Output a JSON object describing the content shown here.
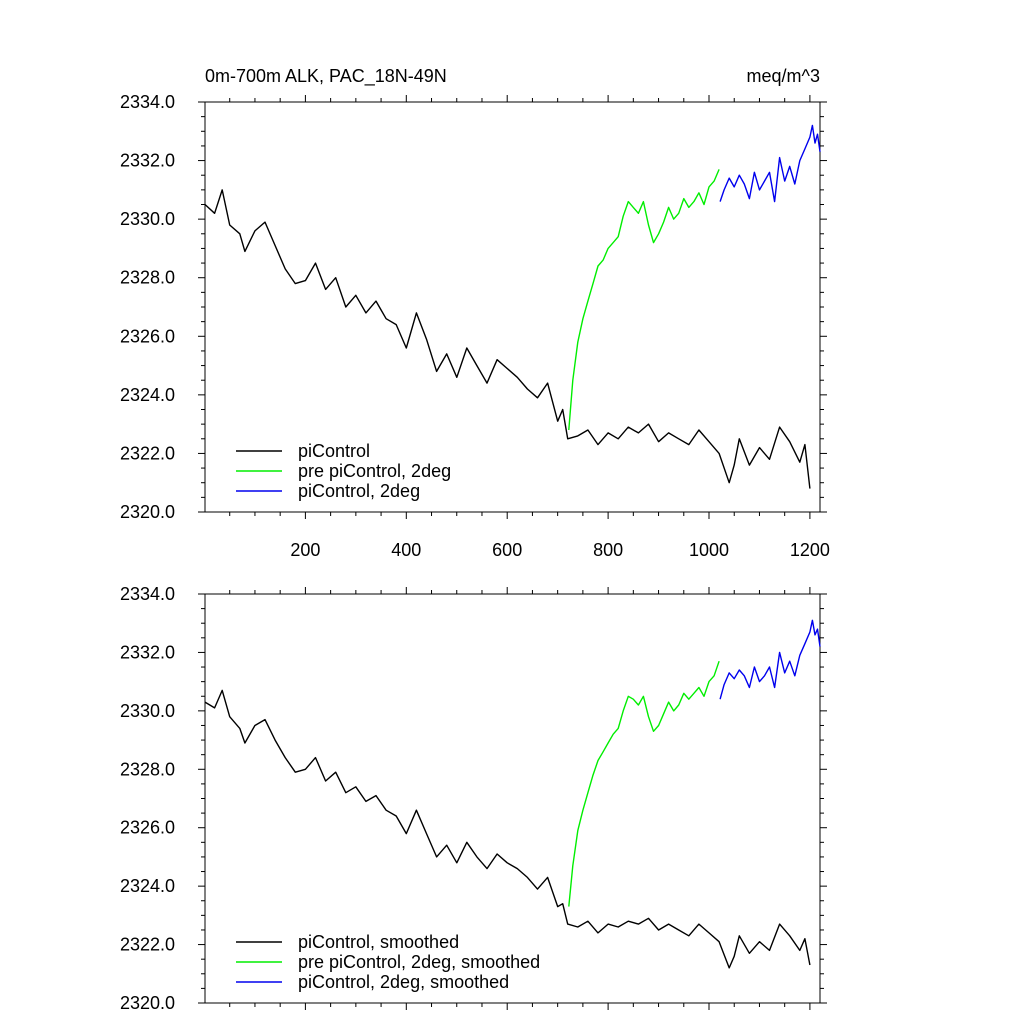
{
  "figure": {
    "title_left": "0m-700m ALK, PAC_18N-49N",
    "title_right": "meq/m^3"
  },
  "chart_data": [
    {
      "type": "line",
      "title": "0m-700m ALK, PAC_18N-49N",
      "units": "meq/m^3",
      "xlim": [
        1,
        1220
      ],
      "ylim": [
        2320.0,
        2334.0
      ],
      "x_ticks": [
        200,
        400,
        600,
        800,
        1000,
        1200
      ],
      "x_tick_labels": [
        "200",
        "400",
        "600",
        "800",
        "1000",
        "1200"
      ],
      "y_ticks": [
        2320.0,
        2322.0,
        2324.0,
        2326.0,
        2328.0,
        2330.0,
        2332.0,
        2334.0
      ],
      "y_tick_labels": [
        "2320.0",
        "2322.0",
        "2324.0",
        "2326.0",
        "2328.0",
        "2330.0",
        "2332.0",
        "2334.0"
      ],
      "grid": false,
      "legend_position": "bottom-left",
      "series": [
        {
          "name": "piControl",
          "color": "#000000",
          "x": [
            1,
            20,
            35,
            50,
            70,
            80,
            100,
            120,
            140,
            160,
            180,
            200,
            220,
            240,
            260,
            280,
            300,
            320,
            340,
            360,
            380,
            400,
            420,
            440,
            460,
            480,
            500,
            520,
            540,
            560,
            580,
            600,
            620,
            640,
            660,
            680,
            700,
            710,
            720,
            740,
            760,
            780,
            800,
            820,
            840,
            860,
            880,
            900,
            920,
            940,
            960,
            980,
            1000,
            1020,
            1040,
            1050,
            1060,
            1080,
            1100,
            1120,
            1140,
            1160,
            1180,
            1190,
            1200
          ],
          "y": [
            2330.5,
            2330.2,
            2331.0,
            2329.8,
            2329.5,
            2328.9,
            2329.6,
            2329.9,
            2329.1,
            2328.3,
            2327.8,
            2327.9,
            2328.5,
            2327.6,
            2328.0,
            2327.0,
            2327.4,
            2326.8,
            2327.2,
            2326.6,
            2326.4,
            2325.6,
            2326.8,
            2325.9,
            2324.8,
            2325.4,
            2324.6,
            2325.6,
            2325.0,
            2324.4,
            2325.2,
            2324.9,
            2324.6,
            2324.2,
            2323.9,
            2324.4,
            2323.1,
            2323.5,
            2322.5,
            2322.6,
            2322.8,
            2322.3,
            2322.7,
            2322.5,
            2322.9,
            2322.7,
            2323.0,
            2322.4,
            2322.7,
            2322.5,
            2322.3,
            2322.8,
            2322.4,
            2322.0,
            2321.0,
            2321.6,
            2322.5,
            2321.6,
            2322.2,
            2321.8,
            2322.9,
            2322.4,
            2321.7,
            2322.3,
            2320.8
          ]
        },
        {
          "name": "pre piControl, 2deg",
          "color": "#00ee00",
          "x": [
            722,
            730,
            740,
            750,
            760,
            770,
            780,
            790,
            800,
            810,
            820,
            830,
            840,
            850,
            860,
            870,
            880,
            890,
            900,
            910,
            920,
            930,
            940,
            950,
            960,
            970,
            980,
            990,
            1000,
            1010,
            1020
          ],
          "y": [
            2322.8,
            2324.5,
            2325.8,
            2326.6,
            2327.2,
            2327.8,
            2328.4,
            2328.6,
            2329.0,
            2329.2,
            2329.4,
            2330.1,
            2330.6,
            2330.4,
            2330.2,
            2330.6,
            2329.8,
            2329.2,
            2329.5,
            2329.9,
            2330.4,
            2330.0,
            2330.2,
            2330.7,
            2330.4,
            2330.6,
            2330.9,
            2330.5,
            2331.1,
            2331.3,
            2331.7
          ]
        },
        {
          "name": "piControl, 2deg",
          "color": "#0000ee",
          "x": [
            1022,
            1030,
            1040,
            1050,
            1060,
            1070,
            1080,
            1090,
            1100,
            1110,
            1120,
            1130,
            1140,
            1150,
            1160,
            1170,
            1180,
            1190,
            1200,
            1205,
            1210,
            1215,
            1220
          ],
          "y": [
            2330.6,
            2331.0,
            2331.4,
            2331.1,
            2331.5,
            2331.2,
            2330.7,
            2331.6,
            2331.0,
            2331.3,
            2331.6,
            2330.6,
            2332.1,
            2331.3,
            2331.8,
            2331.2,
            2332.0,
            2332.4,
            2332.8,
            2333.2,
            2332.6,
            2332.9,
            2332.3
          ]
        }
      ]
    },
    {
      "type": "line",
      "xlim": [
        1,
        1220
      ],
      "ylim": [
        2320.0,
        2334.0
      ],
      "y_ticks": [
        2320.0,
        2322.0,
        2324.0,
        2326.0,
        2328.0,
        2330.0,
        2332.0,
        2334.0
      ],
      "y_tick_labels": [
        "2320.0",
        "2322.0",
        "2324.0",
        "2326.0",
        "2328.0",
        "2330.0",
        "2332.0",
        "2334.0"
      ],
      "grid": false,
      "legend_position": "bottom-left",
      "series": [
        {
          "name": "piControl, smoothed",
          "color": "#000000",
          "x": [
            1,
            20,
            35,
            50,
            70,
            80,
            100,
            120,
            140,
            160,
            180,
            200,
            220,
            240,
            260,
            280,
            300,
            320,
            340,
            360,
            380,
            400,
            420,
            440,
            460,
            480,
            500,
            520,
            540,
            560,
            580,
            600,
            620,
            640,
            660,
            680,
            700,
            710,
            720,
            740,
            760,
            780,
            800,
            820,
            840,
            860,
            880,
            900,
            920,
            940,
            960,
            980,
            1000,
            1020,
            1040,
            1050,
            1060,
            1080,
            1100,
            1120,
            1140,
            1160,
            1180,
            1190,
            1200
          ],
          "y": [
            2330.3,
            2330.1,
            2330.7,
            2329.8,
            2329.4,
            2328.9,
            2329.5,
            2329.7,
            2329.0,
            2328.4,
            2327.9,
            2328.0,
            2328.4,
            2327.6,
            2327.9,
            2327.2,
            2327.4,
            2326.9,
            2327.1,
            2326.6,
            2326.4,
            2325.8,
            2326.6,
            2325.8,
            2325.0,
            2325.4,
            2324.8,
            2325.5,
            2325.0,
            2324.6,
            2325.1,
            2324.8,
            2324.6,
            2324.3,
            2323.9,
            2324.3,
            2323.3,
            2323.4,
            2322.7,
            2322.6,
            2322.8,
            2322.4,
            2322.7,
            2322.6,
            2322.8,
            2322.7,
            2322.9,
            2322.5,
            2322.7,
            2322.5,
            2322.3,
            2322.7,
            2322.4,
            2322.1,
            2321.2,
            2321.6,
            2322.3,
            2321.7,
            2322.1,
            2321.8,
            2322.7,
            2322.3,
            2321.8,
            2322.2,
            2321.3
          ]
        },
        {
          "name": "pre piControl, 2deg, smoothed",
          "color": "#00ee00",
          "x": [
            722,
            730,
            740,
            750,
            760,
            770,
            780,
            790,
            800,
            810,
            820,
            830,
            840,
            850,
            860,
            870,
            880,
            890,
            900,
            910,
            920,
            930,
            940,
            950,
            960,
            970,
            980,
            990,
            1000,
            1010,
            1020
          ],
          "y": [
            2323.3,
            2324.7,
            2325.9,
            2326.6,
            2327.2,
            2327.8,
            2328.3,
            2328.6,
            2328.9,
            2329.2,
            2329.4,
            2330.0,
            2330.5,
            2330.4,
            2330.2,
            2330.5,
            2329.8,
            2329.3,
            2329.5,
            2329.9,
            2330.3,
            2330.0,
            2330.2,
            2330.6,
            2330.4,
            2330.6,
            2330.8,
            2330.5,
            2331.0,
            2331.2,
            2331.7
          ]
        },
        {
          "name": "piControl, 2deg, smoothed",
          "color": "#0000ee",
          "x": [
            1022,
            1030,
            1040,
            1050,
            1060,
            1070,
            1080,
            1090,
            1100,
            1110,
            1120,
            1130,
            1140,
            1150,
            1160,
            1170,
            1180,
            1190,
            1200,
            1205,
            1210,
            1215,
            1220
          ],
          "y": [
            2330.4,
            2330.9,
            2331.3,
            2331.1,
            2331.4,
            2331.2,
            2330.8,
            2331.5,
            2331.0,
            2331.2,
            2331.5,
            2330.8,
            2332.0,
            2331.3,
            2331.7,
            2331.2,
            2331.9,
            2332.3,
            2332.7,
            2333.1,
            2332.6,
            2332.8,
            2332.2
          ]
        }
      ]
    }
  ]
}
